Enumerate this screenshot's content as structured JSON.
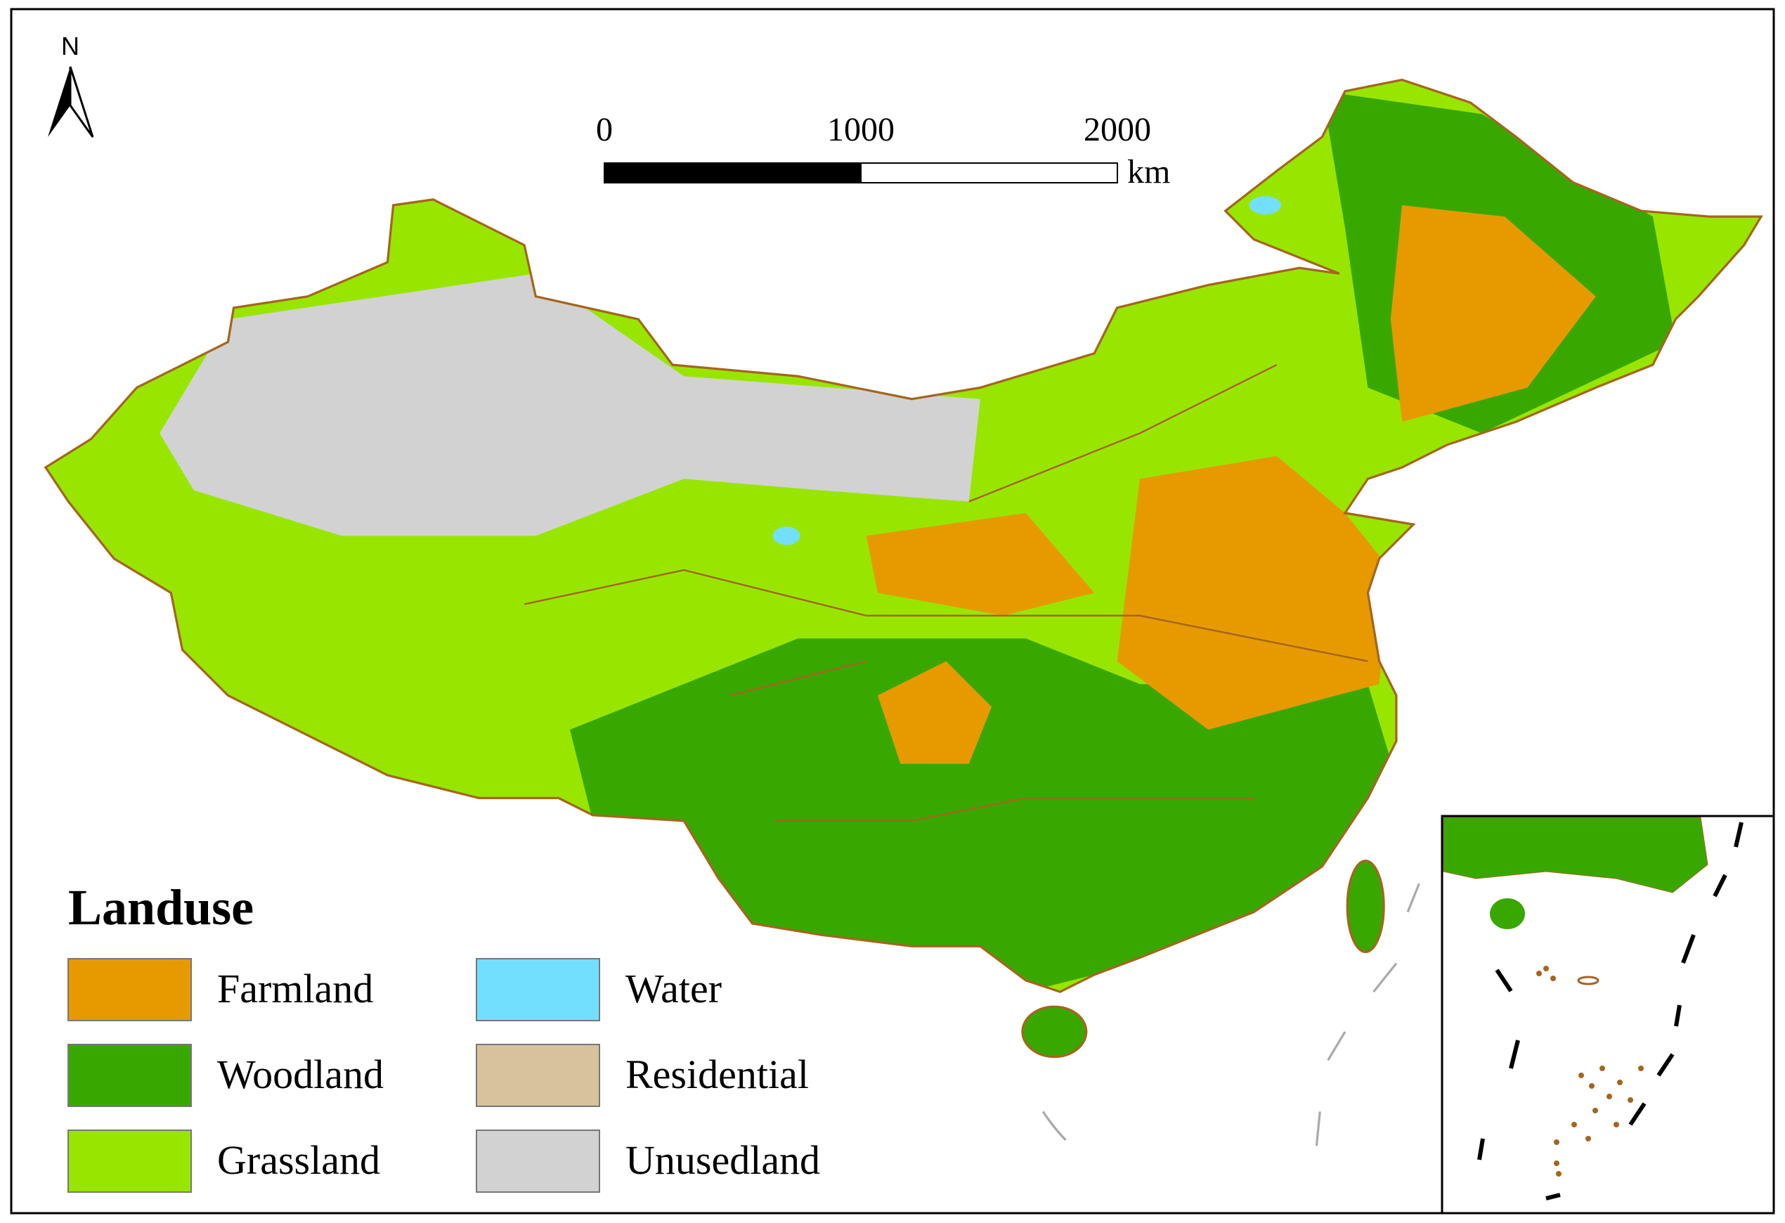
{
  "north_arrow": {
    "label": "N"
  },
  "scale_bar": {
    "ticks": [
      0,
      1000,
      2000
    ],
    "unit": "km"
  },
  "legend": {
    "title": "Landuse",
    "items": [
      {
        "label": "Farmland",
        "color": "#e69a00"
      },
      {
        "label": "Woodland",
        "color": "#38a800"
      },
      {
        "label": "Grassland",
        "color": "#98e600"
      },
      {
        "label": "Water",
        "color": "#73dfff"
      },
      {
        "label": "Residential",
        "color": "#d7c29e"
      },
      {
        "label": "Unusedland",
        "color": "#d2d2d2"
      }
    ]
  }
}
